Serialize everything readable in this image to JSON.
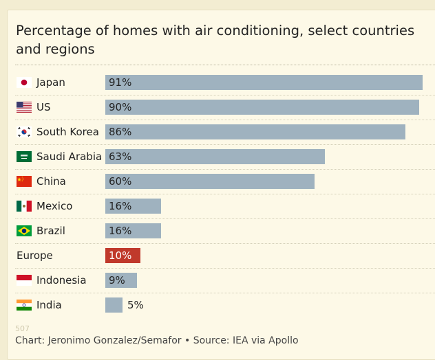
{
  "chart_data": {
    "type": "bar",
    "orientation": "horizontal",
    "title": "Percentage of homes with air conditioning, select countries and regions",
    "categories": [
      "Japan",
      "US",
      "South Korea",
      "Saudi Arabia",
      "China",
      "Mexico",
      "Brazil",
      "Europe",
      "Indonesia",
      "India"
    ],
    "values": [
      91,
      90,
      86,
      63,
      60,
      16,
      16,
      10,
      9,
      5
    ],
    "value_labels": [
      "91%",
      "90%",
      "86%",
      "63%",
      "60%",
      "16%",
      "16%",
      "10%",
      "9%",
      "5%"
    ],
    "flags": [
      "japan-flag-icon",
      "us-flag-icon",
      "south-korea-flag-icon",
      "saudi-arabia-flag-icon",
      "china-flag-icon",
      "mexico-flag-icon",
      "brazil-flag-icon",
      null,
      "indonesia-flag-icon",
      "india-flag-icon"
    ],
    "highlight": "Europe",
    "colors": {
      "bar": "#9fb2bf",
      "highlight": "#c0392b",
      "highlight_text": "#ffffff"
    },
    "grid": false,
    "unit": "%"
  },
  "faint_mark": "507",
  "source": "Chart: Jeronimo Gonzalez/Semafor • Source: IEA via Apollo"
}
